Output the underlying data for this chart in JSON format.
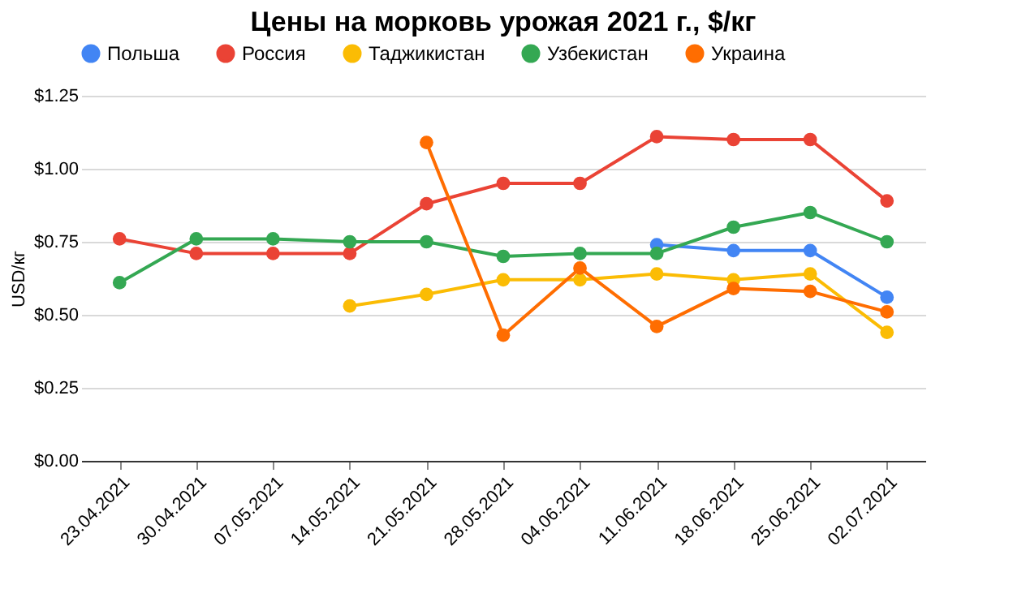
{
  "chart_data": {
    "type": "line",
    "title": "Цены на морковь урожая 2021 г., $/кг",
    "ylabel": "USD/кг",
    "categories": [
      "23.04.2021",
      "30.04.2021",
      "07.05.2021",
      "14.05.2021",
      "21.05.2021",
      "28.05.2021",
      "04.06.2021",
      "11.06.2021",
      "18.06.2021",
      "25.06.2021",
      "02.07.2021"
    ],
    "series": [
      {
        "name": "Польша",
        "color": "#4285f4",
        "values": [
          null,
          null,
          null,
          null,
          null,
          null,
          null,
          0.74,
          0.72,
          0.72,
          0.56
        ]
      },
      {
        "name": "Россия",
        "color": "#ea4335",
        "values": [
          0.76,
          0.71,
          0.71,
          0.71,
          0.88,
          0.95,
          0.95,
          1.11,
          1.1,
          1.1,
          0.89
        ]
      },
      {
        "name": "Таджикистан",
        "color": "#fbbc04",
        "values": [
          null,
          null,
          null,
          0.53,
          0.57,
          0.62,
          0.62,
          0.64,
          0.62,
          0.64,
          0.44
        ]
      },
      {
        "name": "Узбекистан",
        "color": "#34a853",
        "values": [
          0.61,
          0.76,
          0.76,
          0.75,
          0.75,
          0.7,
          0.71,
          0.71,
          0.8,
          0.85,
          0.75
        ]
      },
      {
        "name": "Украина",
        "color": "#ff6d01",
        "values": [
          null,
          null,
          null,
          null,
          1.09,
          0.43,
          0.66,
          0.46,
          0.59,
          0.58,
          0.51
        ]
      }
    ],
    "ylim": [
      0,
      1.25
    ],
    "yticks": [
      {
        "value": 0,
        "label": "$0.00"
      },
      {
        "value": 0.25,
        "label": "$0.25"
      },
      {
        "value": 0.5,
        "label": "$0.50"
      },
      {
        "value": 0.75,
        "label": "$0.75"
      },
      {
        "value": 1.0,
        "label": "$1.00"
      },
      {
        "value": 1.25,
        "label": "$1.25"
      }
    ],
    "grid": "y",
    "legend": "top",
    "marker": "circle",
    "line_style": "solid"
  }
}
